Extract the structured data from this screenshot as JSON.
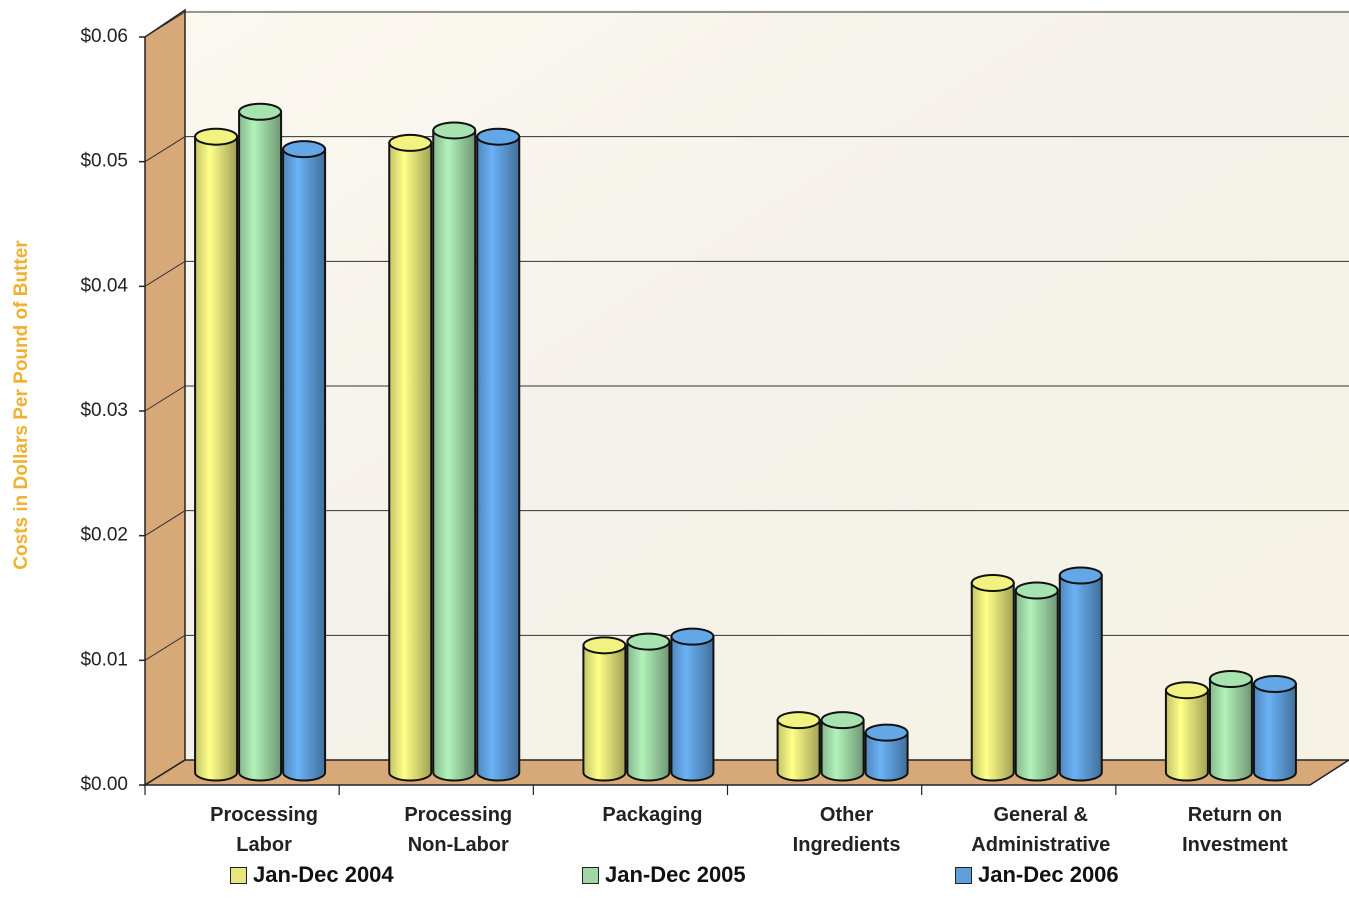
{
  "chart_data": {
    "type": "bar",
    "y_label": "Costs in Dollars Per Pound of Butter",
    "categories": [
      "Processing Labor",
      "Processing Non-Labor",
      "Packaging",
      "Other Ingredients",
      "General & Administrative",
      "Return on Investment"
    ],
    "series": [
      {
        "name": "Jan-Dec 2004",
        "color": "#e6e67a",
        "values": [
          0.051,
          0.0505,
          0.0102,
          0.0042,
          0.0152,
          0.0066
        ]
      },
      {
        "name": "Jan-Dec 2005",
        "color": "#9fd8a6",
        "values": [
          0.053,
          0.0515,
          0.0105,
          0.0042,
          0.0146,
          0.0075
        ]
      },
      {
        "name": "Jan-Dec 2006",
        "color": "#5f9fdc",
        "values": [
          0.05,
          0.051,
          0.0109,
          0.0032,
          0.0158,
          0.0071
        ]
      }
    ],
    "ylim": [
      0,
      0.06
    ],
    "yticks": [
      {
        "value": 0,
        "label": "$0.00"
      },
      {
        "value": 0.01,
        "label": "$0.01"
      },
      {
        "value": 0.02,
        "label": "$0.02"
      },
      {
        "value": 0.03,
        "label": "$0.03"
      },
      {
        "value": 0.04,
        "label": "$0.04"
      },
      {
        "value": 0.05,
        "label": "$0.05"
      },
      {
        "value": 0.06,
        "label": "$0.06"
      }
    ],
    "grid": true
  }
}
